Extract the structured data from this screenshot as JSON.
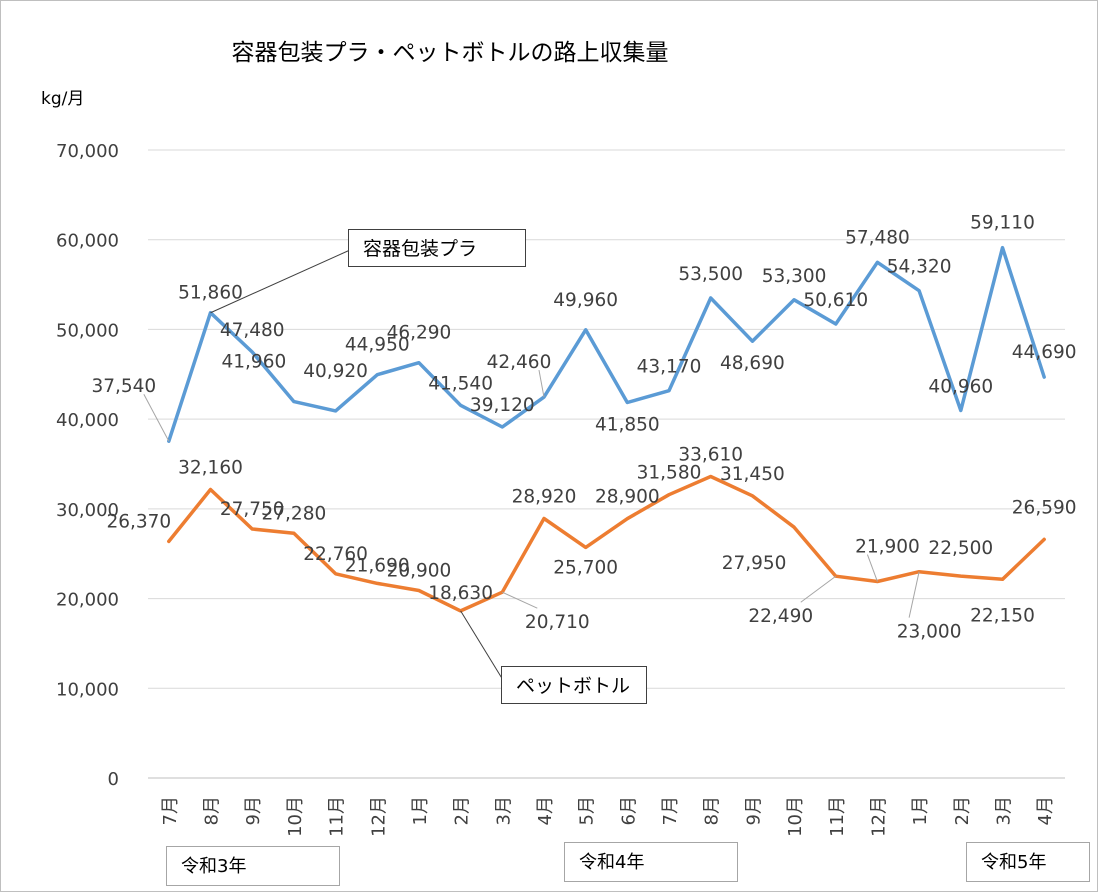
{
  "chart_data": {
    "type": "line",
    "title": "容器包装プラ・ペットボトルの路上収集量",
    "unit": "kg/月",
    "ylim": [
      0,
      70000
    ],
    "y_ticks": [
      "0",
      "10,000",
      "20,000",
      "30,000",
      "40,000",
      "50,000",
      "60,000",
      "70,000"
    ],
    "categories": [
      "7月",
      "8月",
      "9月",
      "10月",
      "11月",
      "12月",
      "1月",
      "2月",
      "3月",
      "4月",
      "5月",
      "6月",
      "7月",
      "8月",
      "9月",
      "10月",
      "11月",
      "12月",
      "1月",
      "2月",
      "3月",
      "4月"
    ],
    "era_labels": [
      "令和3年",
      "令和4年",
      "令和5年"
    ],
    "grid": "horizontal",
    "series": [
      {
        "name": "容器包装プラ",
        "color": "#5b9bd5",
        "values": [
          37540,
          51860,
          47480,
          41960,
          40920,
          44950,
          46290,
          41540,
          39120,
          42460,
          49960,
          41850,
          43170,
          53500,
          48690,
          53300,
          50610,
          57480,
          54320,
          40960,
          59110,
          44690
        ],
        "labels": [
          "37,540",
          "51,860",
          "47,480",
          "41,960",
          "40,920",
          "44,950",
          "46,290",
          "41,540",
          "39,120",
          "42,460",
          "49,960",
          "41,850",
          "43,170",
          "53,500",
          "48,690",
          "53,300",
          "50,610",
          "57,480",
          "54,320",
          "40,960",
          "59,110",
          "44,690"
        ]
      },
      {
        "name": "ペットボトル",
        "color": "#ed7d31",
        "values": [
          26370,
          32160,
          27750,
          27280,
          22760,
          21690,
          20900,
          18630,
          20710,
          28920,
          25700,
          28900,
          31580,
          33610,
          31450,
          27950,
          22490,
          21900,
          23000,
          22500,
          22150,
          26590
        ],
        "labels": [
          "26,370",
          "32,160",
          "27,750",
          "27,280",
          "22,760",
          "21,690",
          "20,900",
          "18,630",
          "20,710",
          "28,920",
          "25,700",
          "28,900",
          "31,580",
          "33,610",
          "31,450",
          "27,950",
          "22,490",
          "21,900",
          "23,000",
          "22,500",
          "22,150",
          "26,590"
        ]
      }
    ]
  }
}
